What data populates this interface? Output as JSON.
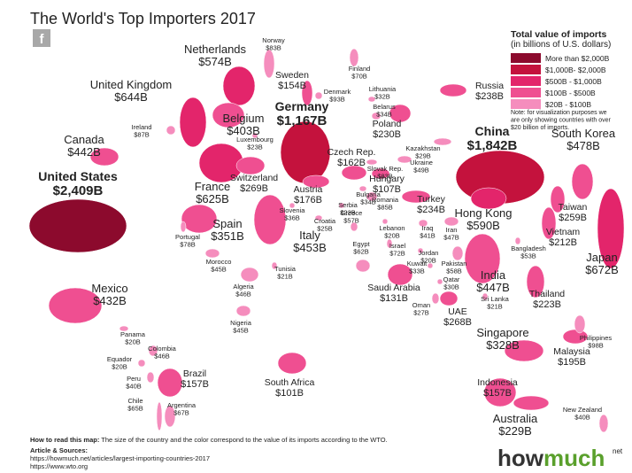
{
  "header": {
    "title": "The World's Top Importers 2017",
    "icon": "f"
  },
  "legend": {
    "title": "Total value of imports",
    "subtitle": "(in billions of U.S. dollars)",
    "items": [
      {
        "label": "More than $2,000B",
        "color": "#8c0a2d"
      },
      {
        "label": "$1,000B- $2,000B",
        "color": "#c4123d"
      },
      {
        "label": "$500B - $1,000B",
        "color": "#e3256b"
      },
      {
        "label": "$100B - $500B",
        "color": "#ef4f91"
      },
      {
        "label": "$20B - $100B",
        "color": "#f58dbd"
      }
    ],
    "note": [
      "Note: for visualization purposes we",
      "are only showing countries with over",
      "$20 billion of imports."
    ]
  },
  "countries": [
    {
      "name": "United States",
      "value": "$2,409B",
      "color": "#8c0a2d"
    },
    {
      "name": "China",
      "value": "$1,842B",
      "color": "#c4123d"
    },
    {
      "name": "Germany",
      "value": "$1,167B",
      "color": "#c4123d"
    },
    {
      "name": "Japan",
      "value": "$672B",
      "color": "#e3256b"
    },
    {
      "name": "Netherlands",
      "value": "$574B",
      "color": "#e3256b"
    },
    {
      "name": "United Kingdom",
      "value": "$644B",
      "color": "#e3256b"
    },
    {
      "name": "France",
      "value": "$625B",
      "color": "#e3256b"
    },
    {
      "name": "Hong Kong",
      "value": "$590B",
      "color": "#e3256b"
    },
    {
      "name": "South Korea",
      "value": "$478B",
      "color": "#ef4f91"
    },
    {
      "name": "Canada",
      "value": "$442B",
      "color": "#ef4f91"
    },
    {
      "name": "Mexico",
      "value": "$432B",
      "color": "#ef4f91"
    },
    {
      "name": "Italy",
      "value": "$453B",
      "color": "#ef4f91"
    },
    {
      "name": "India",
      "value": "$447B",
      "color": "#ef4f91"
    },
    {
      "name": "Belgium",
      "value": "$403B",
      "color": "#ef4f91"
    },
    {
      "name": "Spain",
      "value": "$351B",
      "color": "#ef4f91"
    },
    {
      "name": "Singapore",
      "value": "$328B",
      "color": "#ef4f91"
    },
    {
      "name": "Switzerland",
      "value": "$269B",
      "color": "#ef4f91"
    },
    {
      "name": "UAE",
      "value": "$268B",
      "color": "#ef4f91"
    },
    {
      "name": "Taiwan",
      "value": "$259B",
      "color": "#ef4f91"
    },
    {
      "name": "Russia",
      "value": "$238B",
      "color": "#ef4f91"
    },
    {
      "name": "Turkey",
      "value": "$234B",
      "color": "#ef4f91"
    },
    {
      "name": "Poland",
      "value": "$230B",
      "color": "#ef4f91"
    },
    {
      "name": "Thailand",
      "value": "$223B",
      "color": "#ef4f91"
    },
    {
      "name": "Vietnam",
      "value": "$212B",
      "color": "#ef4f91"
    },
    {
      "name": "Malaysia",
      "value": "$195B",
      "color": "#ef4f91"
    },
    {
      "name": "Austria",
      "value": "$176B",
      "color": "#ef4f91"
    },
    {
      "name": "Czech Rep.",
      "value": "$162B",
      "color": "#ef4f91"
    },
    {
      "name": "Brazil",
      "value": "$157B",
      "color": "#ef4f91"
    },
    {
      "name": "Indonesia",
      "value": "$157B",
      "color": "#ef4f91"
    },
    {
      "name": "Sweden",
      "value": "$154B",
      "color": "#ef4f91"
    },
    {
      "name": "Saudi Arabia",
      "value": "$131B",
      "color": "#ef4f91"
    },
    {
      "name": "Hungary",
      "value": "$107B",
      "color": "#ef4f91"
    },
    {
      "name": "South Africa",
      "value": "$101B",
      "color": "#ef4f91"
    },
    {
      "name": "Australia",
      "value": "$229B",
      "color": "#ef4f91"
    },
    {
      "name": "Norway",
      "value": "$83B",
      "color": "#f58dbd"
    },
    {
      "name": "Finland",
      "value": "$70B",
      "color": "#f58dbd"
    },
    {
      "name": "Denmark",
      "value": "$93B",
      "color": "#f58dbd"
    },
    {
      "name": "Lithuania",
      "value": "$32B",
      "color": "#f58dbd"
    },
    {
      "name": "Belarus",
      "value": "$34B",
      "color": "#f58dbd"
    },
    {
      "name": "Ireland",
      "value": "$87B",
      "color": "#f58dbd"
    },
    {
      "name": "Luxembourg",
      "value": "$23B",
      "color": "#f58dbd"
    },
    {
      "name": "Slovak Rep.",
      "value": "$83B",
      "color": "#f58dbd"
    },
    {
      "name": "Ukraine",
      "value": "$49B",
      "color": "#f58dbd"
    },
    {
      "name": "Kazakhstan",
      "value": "$29B",
      "color": "#f58dbd"
    },
    {
      "name": "Romania",
      "value": "$85B",
      "color": "#f58dbd"
    },
    {
      "name": "Bulgaria",
      "value": "$34B",
      "color": "#f58dbd"
    },
    {
      "name": "Serbia",
      "value": "$22B",
      "color": "#f58dbd"
    },
    {
      "name": "Slovenia",
      "value": "$36B",
      "color": "#f58dbd"
    },
    {
      "name": "Croatia",
      "value": "$25B",
      "color": "#f58dbd"
    },
    {
      "name": "Greece",
      "value": "$57B",
      "color": "#f58dbd"
    },
    {
      "name": "Lebanon",
      "value": "$20B",
      "color": "#f58dbd"
    },
    {
      "name": "Iraq",
      "value": "$41B",
      "color": "#f58dbd"
    },
    {
      "name": "Iran",
      "value": "$47B",
      "color": "#f58dbd"
    },
    {
      "name": "Israel",
      "value": "$72B",
      "color": "#f58dbd"
    },
    {
      "name": "Jordan",
      "value": "$20B",
      "color": "#f58dbd"
    },
    {
      "name": "Kuwait",
      "value": "$33B",
      "color": "#f58dbd"
    },
    {
      "name": "Pakistan",
      "value": "$58B",
      "color": "#f58dbd"
    },
    {
      "name": "Qatar",
      "value": "$30B",
      "color": "#f58dbd"
    },
    {
      "name": "Bangladesh",
      "value": "$53B",
      "color": "#f58dbd"
    },
    {
      "name": "Sri Lanka",
      "value": "$21B",
      "color": "#f58dbd"
    },
    {
      "name": "Oman",
      "value": "$27B",
      "color": "#f58dbd"
    },
    {
      "name": "Egypt",
      "value": "$62B",
      "color": "#f58dbd"
    },
    {
      "name": "Portugal",
      "value": "$78B",
      "color": "#f58dbd"
    },
    {
      "name": "Morocco",
      "value": "$45B",
      "color": "#f58dbd"
    },
    {
      "name": "Tunisia",
      "value": "$21B",
      "color": "#f58dbd"
    },
    {
      "name": "Algeria",
      "value": "$46B",
      "color": "#f58dbd"
    },
    {
      "name": "Nigeria",
      "value": "$45B",
      "color": "#f58dbd"
    },
    {
      "name": "Panama",
      "value": "$20B",
      "color": "#f58dbd"
    },
    {
      "name": "Colombia",
      "value": "$46B",
      "color": "#f58dbd"
    },
    {
      "name": "Equador",
      "value": "$20B",
      "color": "#f58dbd"
    },
    {
      "name": "Peru",
      "value": "$40B",
      "color": "#f58dbd"
    },
    {
      "name": "Chile",
      "value": "$65B",
      "color": "#f58dbd"
    },
    {
      "name": "Argentina",
      "value": "$67B",
      "color": "#f58dbd"
    },
    {
      "name": "Philippines",
      "value": "$98B",
      "color": "#f58dbd"
    },
    {
      "name": "New Zealand",
      "value": "$40B",
      "color": "#f58dbd"
    }
  ],
  "footer": {
    "how_to_read_label": "How to read this map:",
    "how_to_read": "The size of the country and the color correspond to the value of its imports according to the WTO.",
    "sources_label": "Article & Sources:",
    "sources": [
      "https://howmuch.net/articles/largest-importing-countries-2017",
      "https://www.wto.org"
    ],
    "logo": {
      "how": "how",
      "much": "much",
      "suffix": "net"
    }
  }
}
